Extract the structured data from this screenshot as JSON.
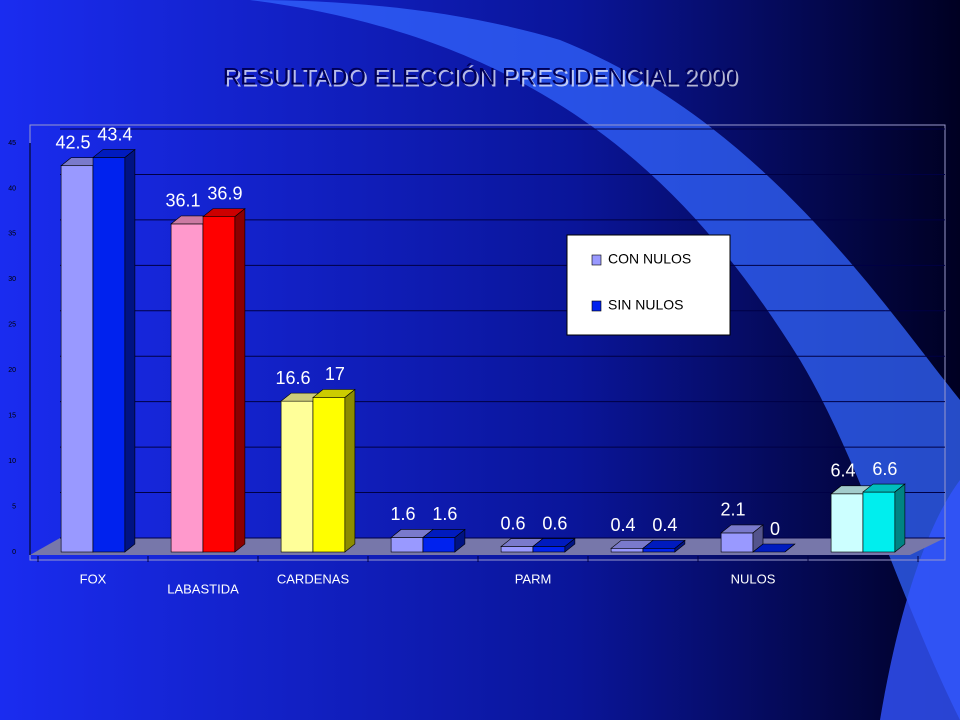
{
  "chart_data": {
    "type": "bar3d",
    "title": "RESULTADO ELECCIÓN PRESIDENCIAL 2000",
    "categories": [
      "FOX",
      "LABASTIDA",
      "CARDENAS",
      null,
      "PARM",
      null,
      "NULOS",
      null
    ],
    "series": [
      {
        "name": "CON NULOS",
        "color": "#9999ff",
        "colors": [
          "#9999ff",
          "#ff99cc",
          "#ffff99",
          "#9999ff",
          "#9999ff",
          "#9999ff",
          "#9999ff",
          "#ccffff"
        ],
        "values": [
          42.5,
          36.1,
          16.6,
          1.6,
          0.6,
          0.4,
          2.1,
          6.4
        ]
      },
      {
        "name": "SIN NULOS",
        "color": "#0022ee",
        "colors": [
          "#0022ee",
          "#ff0000",
          "#ffff00",
          "#0022ee",
          "#0022ee",
          "#0022ee",
          "#0022ee",
          "#00eeee"
        ],
        "values": [
          43.4,
          36.9,
          17,
          1.6,
          0.6,
          0.4,
          0,
          6.6
        ]
      }
    ],
    "ylim": [
      0,
      45
    ],
    "yticks": [
      0,
      5,
      10,
      15,
      20,
      25,
      30,
      35,
      40,
      45
    ],
    "grid": true,
    "legend": "right"
  }
}
